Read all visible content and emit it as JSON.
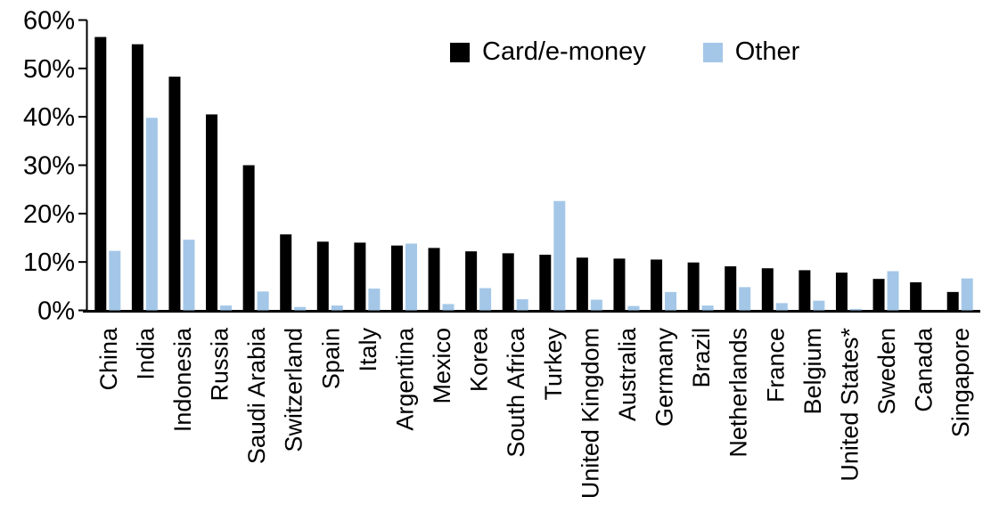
{
  "chart_data": {
    "type": "bar",
    "title": "",
    "xlabel": "",
    "ylabel": "",
    "ylim": [
      0,
      60
    ],
    "ytick_step": 10,
    "ytick_labels": [
      "0%",
      "10%",
      "20%",
      "30%",
      "40%",
      "50%",
      "60%"
    ],
    "grid": false,
    "legend_position": "top-center",
    "categories": [
      "China",
      "India",
      "Indonesia",
      "Russia",
      "Saudi Arabia",
      "Switzerland",
      "Spain",
      "Italy",
      "Argentina",
      "Mexico",
      "Korea",
      "South Africa",
      "Turkey",
      "United Kingdom",
      "Australia",
      "Germany",
      "Brazil",
      "Netherlands",
      "France",
      "Belgium",
      "United States*",
      "Sweden",
      "Canada",
      "Singapore"
    ],
    "series": [
      {
        "name": "Card/e-money",
        "color": "#000000",
        "values": [
          56.5,
          55.0,
          48.3,
          40.5,
          30.0,
          15.7,
          14.2,
          14.0,
          13.4,
          12.9,
          12.2,
          11.8,
          11.5,
          10.9,
          10.7,
          10.5,
          9.9,
          9.1,
          8.7,
          8.3,
          7.8,
          6.5,
          5.8,
          3.8
        ]
      },
      {
        "name": "Other",
        "color": "#A4C7E8",
        "values": [
          12.3,
          39.8,
          14.6,
          1.0,
          3.9,
          0.7,
          1.0,
          4.5,
          13.8,
          1.3,
          4.6,
          2.3,
          22.6,
          2.2,
          0.9,
          3.8,
          1.0,
          4.8,
          1.5,
          2.0,
          0.3,
          8.1,
          0.0,
          6.6
        ]
      }
    ],
    "axis_color": "#000000",
    "label_color": "#000000"
  }
}
